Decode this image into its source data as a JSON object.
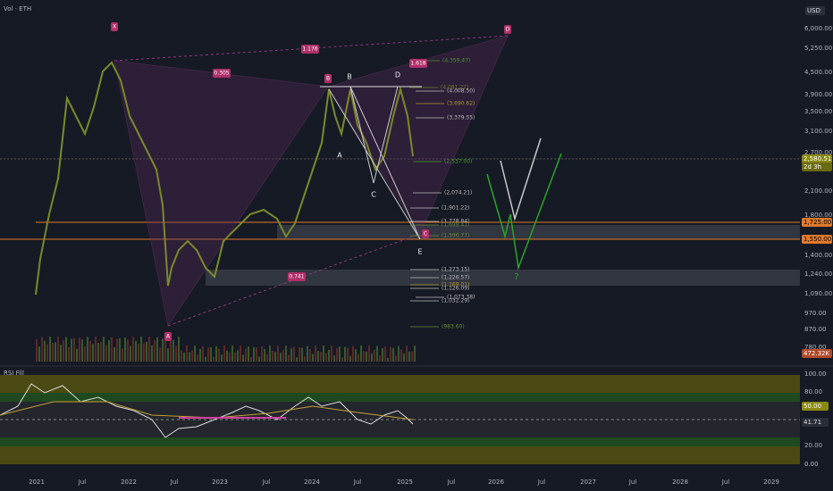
{
  "header": {
    "symbol": "Vol · ETH",
    "currency": "USD"
  },
  "price_axis": {
    "labels": [
      "6,000.00",
      "5,250.00",
      "4,500.00",
      "3,900.00",
      "3,500.00",
      "3,100.00",
      "2,700.00",
      "2,100.00",
      "1,800.00",
      "1,400.00",
      "1,240.00",
      "1,090.00",
      "970.00",
      "870.00",
      "780.00"
    ],
    "current_price": "2,580.51",
    "countdown": "2d 3h",
    "levels": [
      "1,725.00",
      "1,550.00"
    ],
    "volume": "472.32K"
  },
  "fib_levels": [
    "(4,359.47)",
    "(4,081.22)",
    "(4,008.50)",
    "(3,690.62)",
    "(3,379.55)",
    "(2,537.00)",
    "(2,074.21)",
    "(1,901.22)",
    "(1,778.84)",
    "(1,699.41)",
    "(1,596.77)",
    "(1,273.15)",
    "(1,226.57)",
    "(1,169.01)",
    "(1,126.09)",
    "(1,073.38)",
    "(1,032.29)",
    "(983.60)"
  ],
  "pattern": {
    "points": [
      "X",
      "A",
      "B",
      "C",
      "D"
    ],
    "ratios": [
      "1.176",
      "0.305",
      "1.618",
      "0.741"
    ]
  },
  "wave": {
    "labels": [
      "A",
      "B",
      "C",
      "D",
      "E"
    ],
    "question": "?"
  },
  "rsi": {
    "title": "RSI Fill",
    "axis": [
      "100.00",
      "80.00",
      "20.00",
      "0.00"
    ],
    "level": "50.00",
    "value": "41.71"
  },
  "time_axis": [
    "2021",
    "Jul",
    "2022",
    "Jul",
    "2023",
    "Jul",
    "2024",
    "Jul",
    "2025",
    "Jul",
    "2026",
    "Jul",
    "2027",
    "Jul",
    "2028",
    "Jul",
    "2029"
  ]
}
